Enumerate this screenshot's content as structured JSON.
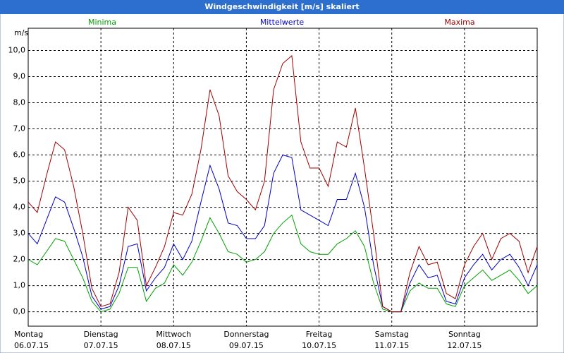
{
  "window_title": "Windgeschwindigkeit [m/s] skaliert",
  "chart_data": {
    "type": "line",
    "y_unit": "m/s",
    "categories": [
      "06.07.15",
      null,
      null,
      null,
      null,
      null,
      null,
      null,
      "07.07.15",
      null,
      null,
      null,
      null,
      null,
      null,
      null,
      "08.07.15",
      null,
      null,
      null,
      null,
      null,
      null,
      null,
      "09.07.15",
      null,
      null,
      null,
      null,
      null,
      null,
      null,
      "10.07.15",
      null,
      null,
      null,
      null,
      null,
      null,
      null,
      "11.07.15",
      null,
      null,
      null,
      null,
      null,
      null,
      null,
      "12.07.15",
      null,
      null,
      null,
      null,
      null,
      null,
      null,
      null
    ],
    "weekdays": [
      "Montag",
      null,
      null,
      null,
      null,
      null,
      null,
      null,
      "Dienstag",
      null,
      null,
      null,
      null,
      null,
      null,
      null,
      "Mittwoch",
      null,
      null,
      null,
      null,
      null,
      null,
      null,
      "Donnerstag",
      null,
      null,
      null,
      null,
      null,
      null,
      null,
      "Freitag",
      null,
      null,
      null,
      null,
      null,
      null,
      null,
      "Samstag",
      null,
      null,
      null,
      null,
      null,
      null,
      null,
      "Sonntag",
      null,
      null,
      null,
      null,
      null,
      null,
      null,
      null
    ],
    "series": [
      {
        "name": "Minima",
        "color": "#00a000",
        "values": [
          2.0,
          1.8,
          2.3,
          2.8,
          2.7,
          2.0,
          1.3,
          0.4,
          0.0,
          0.1,
          0.7,
          1.7,
          1.7,
          0.4,
          0.9,
          1.1,
          1.8,
          1.4,
          1.9,
          2.7,
          3.6,
          3.0,
          2.3,
          2.2,
          1.9,
          2.0,
          2.3,
          3.0,
          3.4,
          3.7,
          2.6,
          2.3,
          2.2,
          2.2,
          2.6,
          2.8,
          3.1,
          2.5,
          1.1,
          0.1,
          0.0,
          0.0,
          0.8,
          1.1,
          0.9,
          0.9,
          0.3,
          0.2,
          1.0,
          1.3,
          1.6,
          1.2,
          1.4,
          1.6,
          1.2,
          0.7,
          1.0
        ]
      },
      {
        "name": "Mittelwerte",
        "color": "#0000c8",
        "values": [
          3.0,
          2.6,
          3.5,
          4.4,
          4.2,
          3.2,
          2.1,
          0.6,
          0.1,
          0.2,
          1.0,
          2.5,
          2.6,
          0.8,
          1.3,
          1.7,
          2.6,
          2.0,
          2.7,
          4.2,
          5.6,
          4.7,
          3.4,
          3.3,
          2.8,
          2.8,
          3.3,
          5.3,
          6.0,
          5.9,
          3.9,
          3.7,
          3.5,
          3.3,
          4.3,
          4.3,
          5.3,
          4.0,
          1.8,
          0.2,
          0.0,
          0.0,
          1.1,
          1.8,
          1.3,
          1.4,
          0.4,
          0.3,
          1.3,
          1.8,
          2.2,
          1.6,
          2.0,
          2.2,
          1.7,
          1.0,
          1.8
        ]
      },
      {
        "name": "Maxima",
        "color": "#a00000",
        "values": [
          4.2,
          3.8,
          5.2,
          6.5,
          6.2,
          4.8,
          3.0,
          0.9,
          0.2,
          0.3,
          1.5,
          4.0,
          3.5,
          1.0,
          1.7,
          2.5,
          3.8,
          3.7,
          4.5,
          6.2,
          8.5,
          7.5,
          5.2,
          4.6,
          4.3,
          3.9,
          5.0,
          8.5,
          9.5,
          9.8,
          6.5,
          5.5,
          5.5,
          4.8,
          6.5,
          6.3,
          7.8,
          5.5,
          3.0,
          0.2,
          0.0,
          0.0,
          1.5,
          2.5,
          1.8,
          1.9,
          0.7,
          0.5,
          1.8,
          2.5,
          3.0,
          2.0,
          2.8,
          3.0,
          2.7,
          1.5,
          2.5
        ]
      }
    ],
    "ylim": [
      -0.55,
      10.85
    ],
    "yticks": [
      {
        "value": 0,
        "label": "0,0"
      },
      {
        "value": 1,
        "label": "1,0"
      },
      {
        "value": 2,
        "label": "2,0"
      },
      {
        "value": 3,
        "label": "3,0"
      },
      {
        "value": 4,
        "label": "4,0"
      },
      {
        "value": 5,
        "label": "5,0"
      },
      {
        "value": 6,
        "label": "6,0"
      },
      {
        "value": 7,
        "label": "7,0"
      },
      {
        "value": 8,
        "label": "8,0"
      },
      {
        "value": 9,
        "label": "9,0"
      },
      {
        "value": 10,
        "label": "10,0"
      }
    ],
    "grid": true
  }
}
